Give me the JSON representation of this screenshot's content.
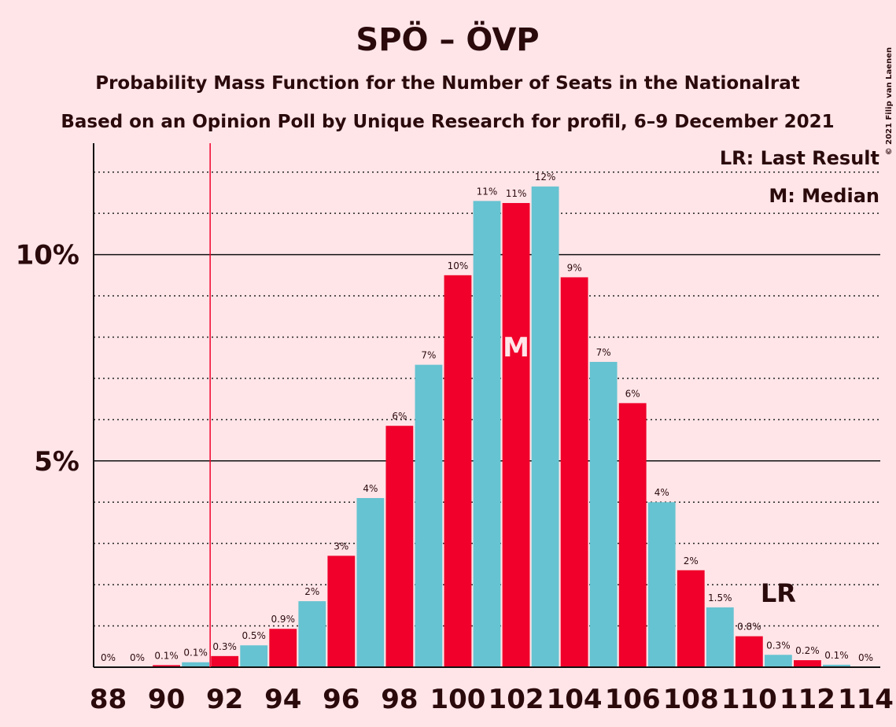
{
  "chart_data": {
    "type": "bar",
    "title": "SPÖ – ÖVP",
    "subtitle": "Probability Mass Function for the Number of Seats in the Nationalrat",
    "subtitle2": "Based on an Opinion Poll by Unique Research for profil, 6–9 December 2021",
    "copyright": "© 2021 Filip van Laenen",
    "x": [
      88,
      89,
      90,
      91,
      92,
      93,
      94,
      95,
      96,
      97,
      98,
      99,
      100,
      101,
      102,
      103,
      104,
      105,
      106,
      107,
      108,
      109,
      110,
      111,
      112,
      113,
      114
    ],
    "values": [
      0,
      0,
      0.05,
      0.12,
      0.27,
      0.53,
      0.93,
      1.6,
      2.7,
      4.1,
      5.85,
      7.33,
      9.5,
      11.3,
      11.25,
      11.65,
      9.45,
      7.4,
      6.4,
      4.0,
      2.35,
      1.45,
      0.75,
      0.3,
      0.17,
      0.06,
      0
    ],
    "value_labels": [
      "0%",
      "0%",
      "0.1%",
      "0.1%",
      "0.3%",
      "0.5%",
      "0.9%",
      "2%",
      "3%",
      "4%",
      "6%",
      "7%",
      "10%",
      "11%",
      "11%",
      "12%",
      "9%",
      "7%",
      "6%",
      "4%",
      "2%",
      "1.5%",
      "0.8%",
      "0.3%",
      "0.2%",
      "0.1%",
      "0%"
    ],
    "colors": [
      "#f0002a",
      "#66c3d1"
    ],
    "xlim": [
      87.5,
      114.5
    ],
    "xticks": [
      88,
      90,
      92,
      94,
      96,
      98,
      100,
      102,
      104,
      106,
      108,
      110,
      112,
      114
    ],
    "ylim": [
      0,
      12.7
    ],
    "yticks": [
      {
        "value": 5,
        "label": "5%"
      },
      {
        "value": 10,
        "label": "10%"
      }
    ],
    "minor_yticks": [
      1,
      2,
      3,
      4,
      6,
      7,
      8,
      9,
      11,
      12
    ],
    "last_result": 91.5,
    "last_result_label": "LR",
    "last_result_label_at": 111,
    "median": 102,
    "median_label": "M",
    "legend": [
      "LR: Last Result",
      "M: Median"
    ]
  }
}
